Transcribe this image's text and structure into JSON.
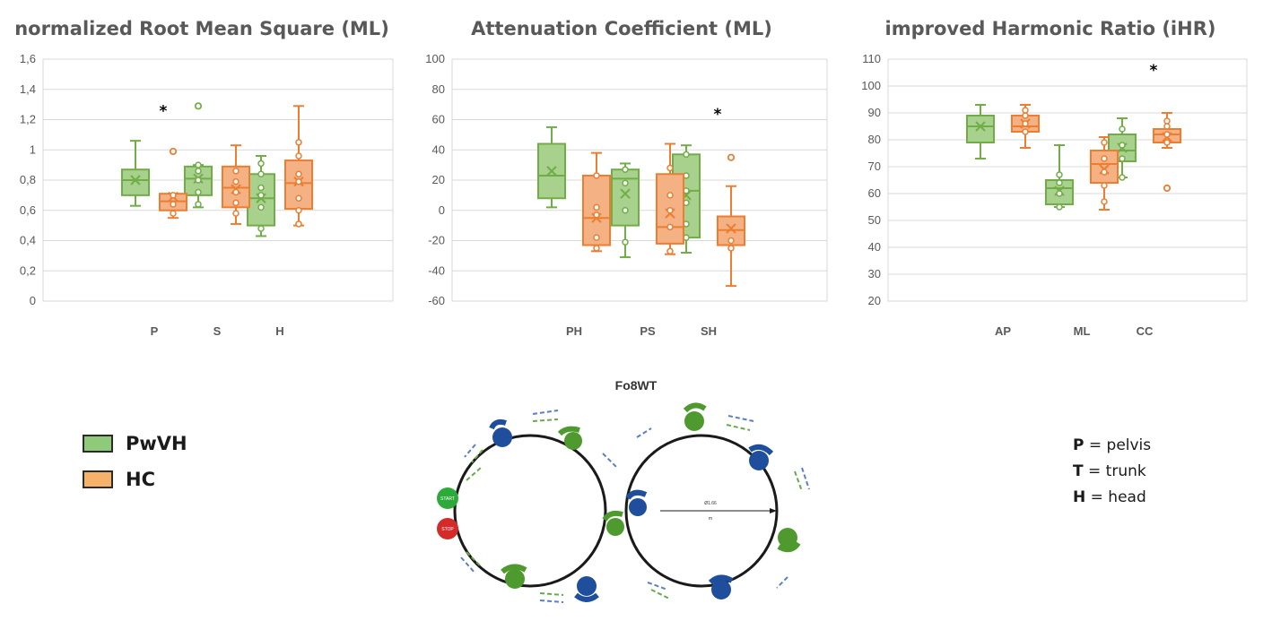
{
  "colors": {
    "pwvh": "#70ad47",
    "pwvh_fill": "#a9d18e",
    "hc": "#ed7d31",
    "hc_fill": "#f4b183",
    "walker": "#1f4e9c"
  },
  "chart_data": [
    {
      "type": "box",
      "title": "normalized Root Mean Square (ML)",
      "xlabel": "",
      "ylabel": "",
      "ylim": [
        0,
        1.6
      ],
      "yticks": [
        "0",
        "0,2",
        "0,4",
        "0,6",
        "0,8",
        "1",
        "1,2",
        "1,4",
        "1,6"
      ],
      "categories": [
        "P",
        "S",
        "H"
      ],
      "grid": true,
      "series": [
        {
          "name": "PwVH",
          "boxes": [
            {
              "min": 0.63,
              "q1": 0.7,
              "median": 0.8,
              "q3": 0.87,
              "max": 1.06,
              "mean": 0.8,
              "points": [],
              "outliers": []
            },
            {
              "min": 0.62,
              "q1": 0.7,
              "median": 0.81,
              "q3": 0.89,
              "max": 0.9,
              "mean": 0.81,
              "points": [
                0.64,
                0.72,
                0.8,
                0.86,
                0.9
              ],
              "outliers": [
                1.29
              ]
            },
            {
              "min": 0.43,
              "q1": 0.5,
              "median": 0.68,
              "q3": 0.84,
              "max": 0.96,
              "mean": 0.68,
              "points": [
                0.48,
                0.62,
                0.7,
                0.75,
                0.84,
                0.91
              ],
              "outliers": []
            }
          ]
        },
        {
          "name": "HC",
          "boxes": [
            {
              "min": 0.55,
              "q1": 0.6,
              "median": 0.66,
              "q3": 0.71,
              "max": 0.71,
              "mean": 0.69,
              "points": [
                0.58,
                0.64,
                0.7
              ],
              "outliers": [
                0.99
              ]
            },
            {
              "min": 0.51,
              "q1": 0.62,
              "median": 0.75,
              "q3": 0.89,
              "max": 1.03,
              "mean": 0.74,
              "points": [
                0.58,
                0.65,
                0.72,
                0.79,
                0.86
              ],
              "outliers": []
            },
            {
              "min": 0.5,
              "q1": 0.61,
              "median": 0.78,
              "q3": 0.93,
              "max": 1.29,
              "mean": 0.79,
              "points": [
                0.51,
                0.6,
                0.68,
                0.79,
                0.84,
                0.96,
                1.05
              ],
              "outliers": []
            }
          ]
        }
      ],
      "annotations": [
        {
          "text": "*",
          "category": "P",
          "y": 1.26
        }
      ]
    },
    {
      "type": "box",
      "title": "Attenuation Coefficient (ML)",
      "xlabel": "",
      "ylabel": "",
      "ylim": [
        -60,
        100
      ],
      "yticks": [
        "-60",
        "-40",
        "-20",
        "0",
        "20",
        "40",
        "60",
        "80",
        "100"
      ],
      "categories": [
        "PH",
        "PS",
        "SH"
      ],
      "grid": true,
      "series": [
        {
          "name": "PwVH",
          "boxes": [
            {
              "min": 2,
              "q1": 8,
              "median": 23,
              "q3": 44,
              "max": 55,
              "mean": 26,
              "points": [],
              "outliers": []
            },
            {
              "min": -31,
              "q1": -10,
              "median": 21,
              "q3": 27,
              "max": 31,
              "mean": 11,
              "points": [
                -21,
                0,
                18,
                27
              ],
              "outliers": []
            },
            {
              "min": -28,
              "q1": -18,
              "median": 13,
              "q3": 37,
              "max": 43,
              "mean": 10,
              "points": [
                -18,
                -9,
                5,
                13,
                23,
                37
              ],
              "outliers": []
            }
          ]
        },
        {
          "name": "HC",
          "boxes": [
            {
              "min": -27,
              "q1": -23,
              "median": -5,
              "q3": 23,
              "max": 38,
              "mean": -5,
              "points": [
                -25,
                -18,
                -3,
                2,
                23
              ],
              "outliers": []
            },
            {
              "min": -29,
              "q1": -22,
              "median": -11,
              "q3": 24,
              "max": 44,
              "mean": -2,
              "points": [
                -27,
                -11,
                0,
                10,
                28
              ],
              "outliers": []
            },
            {
              "min": -50,
              "q1": -23,
              "median": -13,
              "q3": -4,
              "max": 16,
              "mean": -12,
              "points": [
                -25,
                -20
              ],
              "outliers": [
                35
              ]
            }
          ]
        }
      ],
      "annotations": [
        {
          "text": "*",
          "category": "SH",
          "y": 64
        }
      ]
    },
    {
      "type": "box",
      "title": "improved Harmonic Ratio (iHR)",
      "xlabel": "",
      "ylabel": "",
      "ylim": [
        20,
        110
      ],
      "yticks": [
        "20",
        "30",
        "40",
        "50",
        "60",
        "70",
        "80",
        "90",
        "100",
        "110"
      ],
      "categories": [
        "AP",
        "ML",
        "CC"
      ],
      "grid": true,
      "series": [
        {
          "name": "PwVH",
          "boxes": [
            {
              "min": 73,
              "q1": 79,
              "median": 85,
              "q3": 89,
              "max": 93,
              "mean": 85,
              "points": [],
              "outliers": []
            },
            {
              "min": 55,
              "q1": 56,
              "median": 62,
              "q3": 65,
              "max": 78,
              "mean": 61,
              "points": [
                55,
                60,
                64,
                67
              ],
              "outliers": []
            },
            {
              "min": 66,
              "q1": 72,
              "median": 76,
              "q3": 82,
              "max": 88,
              "mean": 77,
              "points": [
                66,
                73,
                78,
                84
              ],
              "outliers": []
            }
          ]
        },
        {
          "name": "HC",
          "boxes": [
            {
              "min": 77,
              "q1": 83,
              "median": 85,
              "q3": 89,
              "max": 93,
              "mean": 86,
              "points": [
                83,
                86,
                89,
                91
              ],
              "outliers": []
            },
            {
              "min": 54,
              "q1": 64,
              "median": 71,
              "q3": 76,
              "max": 81,
              "mean": 69,
              "points": [
                57,
                63,
                68,
                73,
                79
              ],
              "outliers": []
            },
            {
              "min": 77,
              "q1": 79,
              "median": 82,
              "q3": 84,
              "max": 90,
              "mean": 81,
              "points": [
                79,
                82,
                85,
                87
              ],
              "outliers": [
                62
              ]
            }
          ]
        }
      ],
      "annotations": [
        {
          "text": "*",
          "category": "CC",
          "y": 106
        }
      ]
    }
  ],
  "legend": [
    {
      "label": "PwVH",
      "color_key": "pwvh"
    },
    {
      "label": "HC",
      "color_key": "hc"
    }
  ],
  "diagram": {
    "title": "Fo8WT",
    "start_label": "START",
    "stop_label": "STOP",
    "distance_label": "Ø1.66",
    "distance_unit": "m"
  },
  "abbreviations": [
    {
      "key": "P",
      "text": "= pelvis"
    },
    {
      "key": "T",
      "text": "= trunk"
    },
    {
      "key": "H",
      "text": "= head"
    }
  ]
}
